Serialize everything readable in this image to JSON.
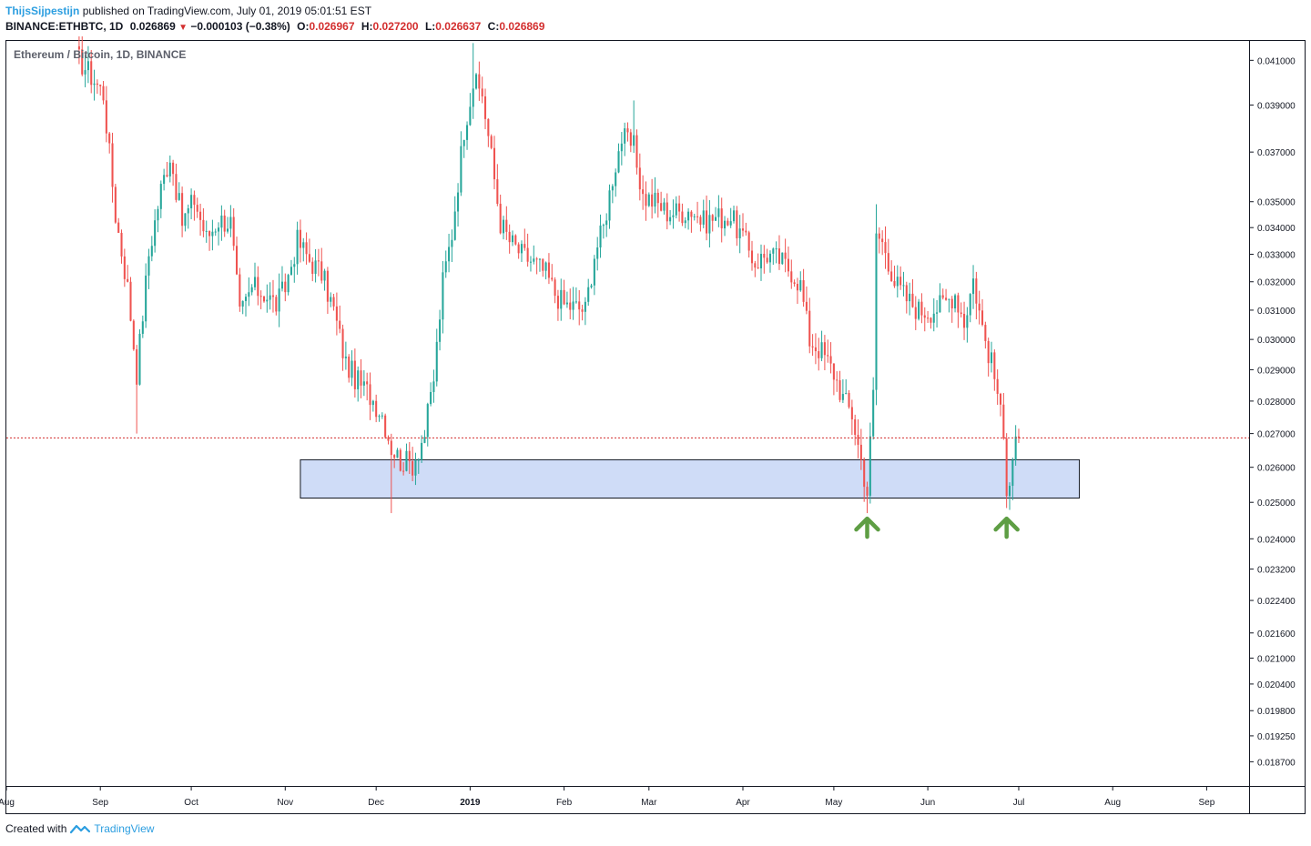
{
  "header": {
    "author": "ThijsSijpestijn",
    "published_text": "published on TradingView.com, July 01, 2019 05:01:51 EST",
    "symbol": "BINANCE:ETHBTC, 1D",
    "last": "0.026869",
    "change": "−0.000103 (−0.38%)",
    "o_label": "O:",
    "o_value": "0.026967",
    "h_label": "H:",
    "h_value": "0.027200",
    "l_label": "L:",
    "l_value": "0.026637",
    "c_label": "C:",
    "c_value": "0.026869"
  },
  "footer": {
    "created_with": "Created with",
    "brand": "TradingView"
  },
  "colors": {
    "up": "#26a69a",
    "down": "#ef5350",
    "zone_fill": "#cfdcf7",
    "arrow": "#5e9e44",
    "price_line": "#d32f2f",
    "axis": "#131722"
  },
  "chart_data": {
    "type": "candlestick",
    "title": "Ethereum / Bitcoin, 1D, BINANCE",
    "scale": "log",
    "ylim": [
      0.0182,
      0.0419
    ],
    "xlim": [
      "2018-08-01",
      "2019-09-15"
    ],
    "y_ticks": [
      "0.041000",
      "0.039000",
      "0.037000",
      "0.035000",
      "0.034000",
      "0.033000",
      "0.032000",
      "0.031000",
      "0.030000",
      "0.029000",
      "0.028000",
      "0.027000",
      "0.026000",
      "0.025000",
      "0.024000",
      "0.023200",
      "0.022400",
      "0.021600",
      "0.021000",
      "0.020400",
      "0.019800",
      "0.019250",
      "0.018700"
    ],
    "x_ticks": [
      {
        "label": "Aug",
        "date": "2018-08-01"
      },
      {
        "label": "Sep",
        "date": "2018-09-01"
      },
      {
        "label": "Oct",
        "date": "2018-10-01"
      },
      {
        "label": "Nov",
        "date": "2018-11-01"
      },
      {
        "label": "Dec",
        "date": "2018-12-01"
      },
      {
        "label": "2019",
        "date": "2019-01-01"
      },
      {
        "label": "Feb",
        "date": "2019-02-01"
      },
      {
        "label": "Mar",
        "date": "2019-03-01"
      },
      {
        "label": "Apr",
        "date": "2019-04-01"
      },
      {
        "label": "May",
        "date": "2019-05-01"
      },
      {
        "label": "Jun",
        "date": "2019-06-01"
      },
      {
        "label": "Jul",
        "date": "2019-07-01"
      },
      {
        "label": "Aug",
        "date": "2019-08-01"
      },
      {
        "label": "Sep",
        "date": "2019-09-01"
      }
    ],
    "close_path": [
      [
        "2018-08-24",
        0.0412
      ],
      [
        "2018-08-28",
        0.0405
      ],
      [
        "2018-09-02",
        0.0395
      ],
      [
        "2018-09-06",
        0.0345
      ],
      [
        "2018-09-10",
        0.0318
      ],
      [
        "2018-09-13",
        0.0289
      ],
      [
        "2018-09-17",
        0.033
      ],
      [
        "2018-09-21",
        0.0355
      ],
      [
        "2018-09-24",
        0.0369
      ],
      [
        "2018-09-28",
        0.0342
      ],
      [
        "2018-10-02",
        0.0351
      ],
      [
        "2018-10-06",
        0.0336
      ],
      [
        "2018-10-10",
        0.0343
      ],
      [
        "2018-10-14",
        0.0342
      ],
      [
        "2018-10-17",
        0.0308
      ],
      [
        "2018-10-21",
        0.0318
      ],
      [
        "2018-10-25",
        0.0316
      ],
      [
        "2018-10-29",
        0.0312
      ],
      [
        "2018-11-01",
        0.0318
      ],
      [
        "2018-11-05",
        0.0335
      ],
      [
        "2018-11-09",
        0.0328
      ],
      [
        "2018-11-13",
        0.0323
      ],
      [
        "2018-11-17",
        0.031
      ],
      [
        "2018-11-21",
        0.0292
      ],
      [
        "2018-11-25",
        0.0286
      ],
      [
        "2018-11-29",
        0.0282
      ],
      [
        "2018-12-03",
        0.0276
      ],
      [
        "2018-12-06",
        0.0266
      ],
      [
        "2018-12-09",
        0.0262
      ],
      [
        "2018-12-13",
        0.0261
      ],
      [
        "2018-12-17",
        0.027
      ],
      [
        "2018-12-20",
        0.0287
      ],
      [
        "2018-12-23",
        0.032
      ],
      [
        "2018-12-26",
        0.0338
      ],
      [
        "2018-12-30",
        0.038
      ],
      [
        "2019-01-02",
        0.04
      ],
      [
        "2019-01-05",
        0.0395
      ],
      [
        "2019-01-08",
        0.0368
      ],
      [
        "2019-01-11",
        0.0342
      ],
      [
        "2019-01-14",
        0.0335
      ],
      [
        "2019-01-18",
        0.033
      ],
      [
        "2019-01-22",
        0.0327
      ],
      [
        "2019-01-26",
        0.0323
      ],
      [
        "2019-01-29",
        0.0316
      ],
      [
        "2019-02-01",
        0.0312
      ],
      [
        "2019-02-05",
        0.0311
      ],
      [
        "2019-02-08",
        0.031
      ],
      [
        "2019-02-11",
        0.033
      ],
      [
        "2019-02-14",
        0.034
      ],
      [
        "2019-02-17",
        0.036
      ],
      [
        "2019-02-20",
        0.0376
      ],
      [
        "2019-02-24",
        0.0372
      ],
      [
        "2019-02-27",
        0.0352
      ],
      [
        "2019-03-03",
        0.035
      ],
      [
        "2019-03-07",
        0.0346
      ],
      [
        "2019-03-11",
        0.0346
      ],
      [
        "2019-03-15",
        0.0347
      ],
      [
        "2019-03-19",
        0.0342
      ],
      [
        "2019-03-23",
        0.0344
      ],
      [
        "2019-03-28",
        0.0344
      ],
      [
        "2019-04-01",
        0.0336
      ],
      [
        "2019-04-05",
        0.0327
      ],
      [
        "2019-04-09",
        0.033
      ],
      [
        "2019-04-13",
        0.0328
      ],
      [
        "2019-04-17",
        0.0324
      ],
      [
        "2019-04-20",
        0.0319
      ],
      [
        "2019-04-23",
        0.03
      ],
      [
        "2019-04-27",
        0.0296
      ],
      [
        "2019-05-01",
        0.0289
      ],
      [
        "2019-05-04",
        0.0281
      ],
      [
        "2019-05-07",
        0.0276
      ],
      [
        "2019-05-10",
        0.0262
      ],
      [
        "2019-05-12",
        0.0253
      ],
      [
        "2019-05-14",
        0.0282
      ],
      [
        "2019-05-15",
        0.0338
      ],
      [
        "2019-05-18",
        0.0332
      ],
      [
        "2019-05-21",
        0.032
      ],
      [
        "2019-05-25",
        0.0314
      ],
      [
        "2019-05-29",
        0.031
      ],
      [
        "2019-06-02",
        0.031
      ],
      [
        "2019-06-06",
        0.0312
      ],
      [
        "2019-06-10",
        0.0316
      ],
      [
        "2019-06-13",
        0.0306
      ],
      [
        "2019-06-16",
        0.0321
      ],
      [
        "2019-06-19",
        0.0304
      ],
      [
        "2019-06-22",
        0.0292
      ],
      [
        "2019-06-24",
        0.0283
      ],
      [
        "2019-06-26",
        0.0268
      ],
      [
        "2019-06-27",
        0.0255
      ],
      [
        "2019-06-28",
        0.0258
      ],
      [
        "2019-06-30",
        0.027
      ],
      [
        "2019-07-01",
        0.026869
      ]
    ],
    "wick_extremes": [
      {
        "date": "2018-09-13",
        "low": 0.027
      },
      {
        "date": "2018-12-06",
        "low": 0.0247
      },
      {
        "date": "2019-01-02",
        "high": 0.0418
      },
      {
        "date": "2019-02-24",
        "high": 0.0392
      },
      {
        "date": "2019-05-12",
        "low": 0.0247
      },
      {
        "date": "2019-05-15",
        "high": 0.0349
      }
    ],
    "support_zone": {
      "low": 0.02512,
      "high": 0.02622,
      "from": "2018-11-06",
      "to": "2019-07-21"
    },
    "current_price_line": 0.026869,
    "annotations": [
      {
        "type": "up-arrow",
        "date": "2019-05-12",
        "price": 0.0243
      },
      {
        "type": "up-arrow",
        "date": "2019-06-27",
        "price": 0.0243
      }
    ],
    "grid": false
  }
}
